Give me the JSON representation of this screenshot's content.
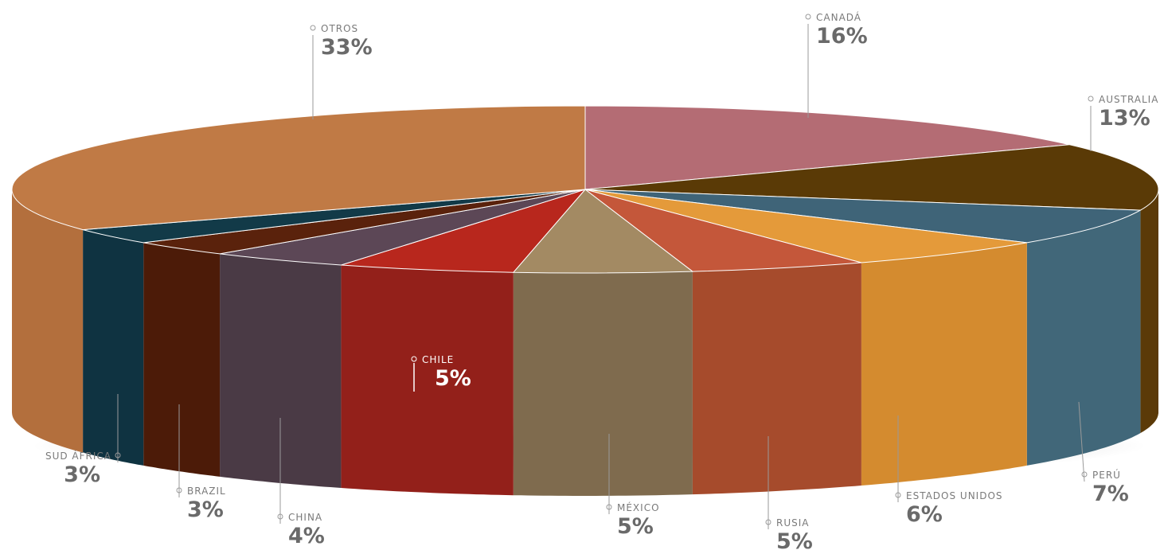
{
  "chart_data": {
    "type": "pie",
    "slices": [
      {
        "label": "CANADÁ",
        "value": 16,
        "value_text": "16%",
        "color": "#b46c74",
        "side": "#a85f66"
      },
      {
        "label": "AUSTRALIA",
        "value": 13,
        "value_text": "13%",
        "color": "#5a3a06",
        "side": "#5b3a08"
      },
      {
        "label": "PERÚ",
        "value": 7,
        "value_text": "7%",
        "color": "#3f6478",
        "side": "#416779"
      },
      {
        "label": "ESTADOS UNIDOS",
        "value": 6,
        "value_text": "6%",
        "color": "#e49a3a",
        "side": "#d48b2f"
      },
      {
        "label": "RUSIA",
        "value": 5,
        "value_text": "5%",
        "color": "#c4573a",
        "side": "#a64b2c"
      },
      {
        "label": "MÉXICO",
        "value": 5,
        "value_text": "5%",
        "color": "#a38a63",
        "side": "#7f6b4e"
      },
      {
        "label": "CHILE",
        "value": 5,
        "value_text": "5%",
        "color": "#b8271d",
        "side": "#93201a"
      },
      {
        "label": "CHINA",
        "value": 4,
        "value_text": "4%",
        "color": "#5c4756",
        "side": "#4a3a45"
      },
      {
        "label": "BRAZIL",
        "value": 3,
        "value_text": "3%",
        "color": "#5a220c",
        "side": "#4c1b08"
      },
      {
        "label": "SUD ÁFRICA",
        "value": 3,
        "value_text": "3%",
        "color": "#123a48",
        "side": "#0f3341"
      },
      {
        "label": "OTROS",
        "value": 33,
        "value_text": "33%",
        "color": "#c07a45",
        "side": "#b36f3d"
      }
    ]
  }
}
